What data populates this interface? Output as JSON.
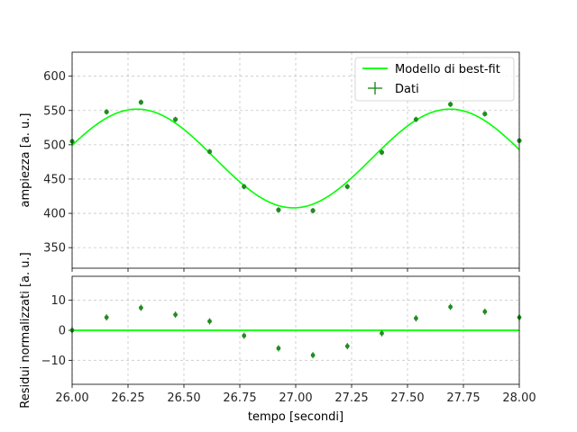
{
  "colors": {
    "fit_line": "#00ff00",
    "data_points": "#228b22",
    "grid": "#b0b0b0",
    "axes": "#000000"
  },
  "chart_data": [
    {
      "type": "scatter",
      "panel": "main",
      "xlabel": "",
      "ylabel": "ampiezza [a. u.]",
      "xlim": [
        26.0,
        28.0
      ],
      "ylim": [
        320,
        635
      ],
      "yticks": [
        350,
        400,
        450,
        500,
        550,
        600
      ],
      "xticks": [
        26.0,
        26.25,
        26.5,
        26.75,
        27.0,
        27.25,
        27.5,
        27.75,
        28.0
      ],
      "grid": true,
      "legend_position": "top-right",
      "legend": [
        "Modello di best-fit",
        "Dati"
      ],
      "series": [
        {
          "name": "Dati",
          "kind": "points-with-errorbars",
          "x": [
            26.0,
            26.154,
            26.308,
            26.462,
            26.615,
            26.769,
            26.923,
            27.077,
            27.231,
            27.385,
            27.538,
            27.692,
            27.846,
            28.0
          ],
          "y": [
            505,
            548,
            562,
            537,
            490,
            439,
            405,
            404,
            439,
            489,
            537,
            559,
            545,
            506
          ]
        },
        {
          "name": "Modello di best-fit",
          "kind": "line",
          "model": {
            "offset": 480,
            "amplitude": 72,
            "center": 26.99,
            "period": 1.4
          }
        }
      ]
    },
    {
      "type": "scatter",
      "panel": "residuals",
      "xlabel": "tempo [secondi]",
      "ylabel": "Residui normalizzati [a. u.]",
      "xlim": [
        26.0,
        28.0
      ],
      "ylim": [
        -18,
        18
      ],
      "yticks": [
        -10,
        0,
        10
      ],
      "xticks": [
        26.0,
        26.25,
        26.5,
        26.75,
        27.0,
        27.25,
        27.5,
        27.75,
        28.0
      ],
      "xtick_labels": [
        "26.00",
        "26.25",
        "26.50",
        "26.75",
        "27.00",
        "27.25",
        "27.50",
        "27.75",
        "28.00"
      ],
      "grid": true,
      "zero_line": 0,
      "series": [
        {
          "name": "Residui",
          "kind": "points-with-errorbars",
          "x": [
            26.0,
            26.154,
            26.308,
            26.462,
            26.615,
            26.769,
            26.923,
            27.077,
            27.231,
            27.385,
            27.538,
            27.692,
            27.846,
            28.0
          ],
          "y": [
            0,
            4.3,
            7.5,
            5.2,
            3.0,
            -1.8,
            -6.0,
            -8.3,
            -5.3,
            -1.0,
            4.0,
            7.8,
            6.2,
            4.3
          ]
        }
      ]
    }
  ]
}
